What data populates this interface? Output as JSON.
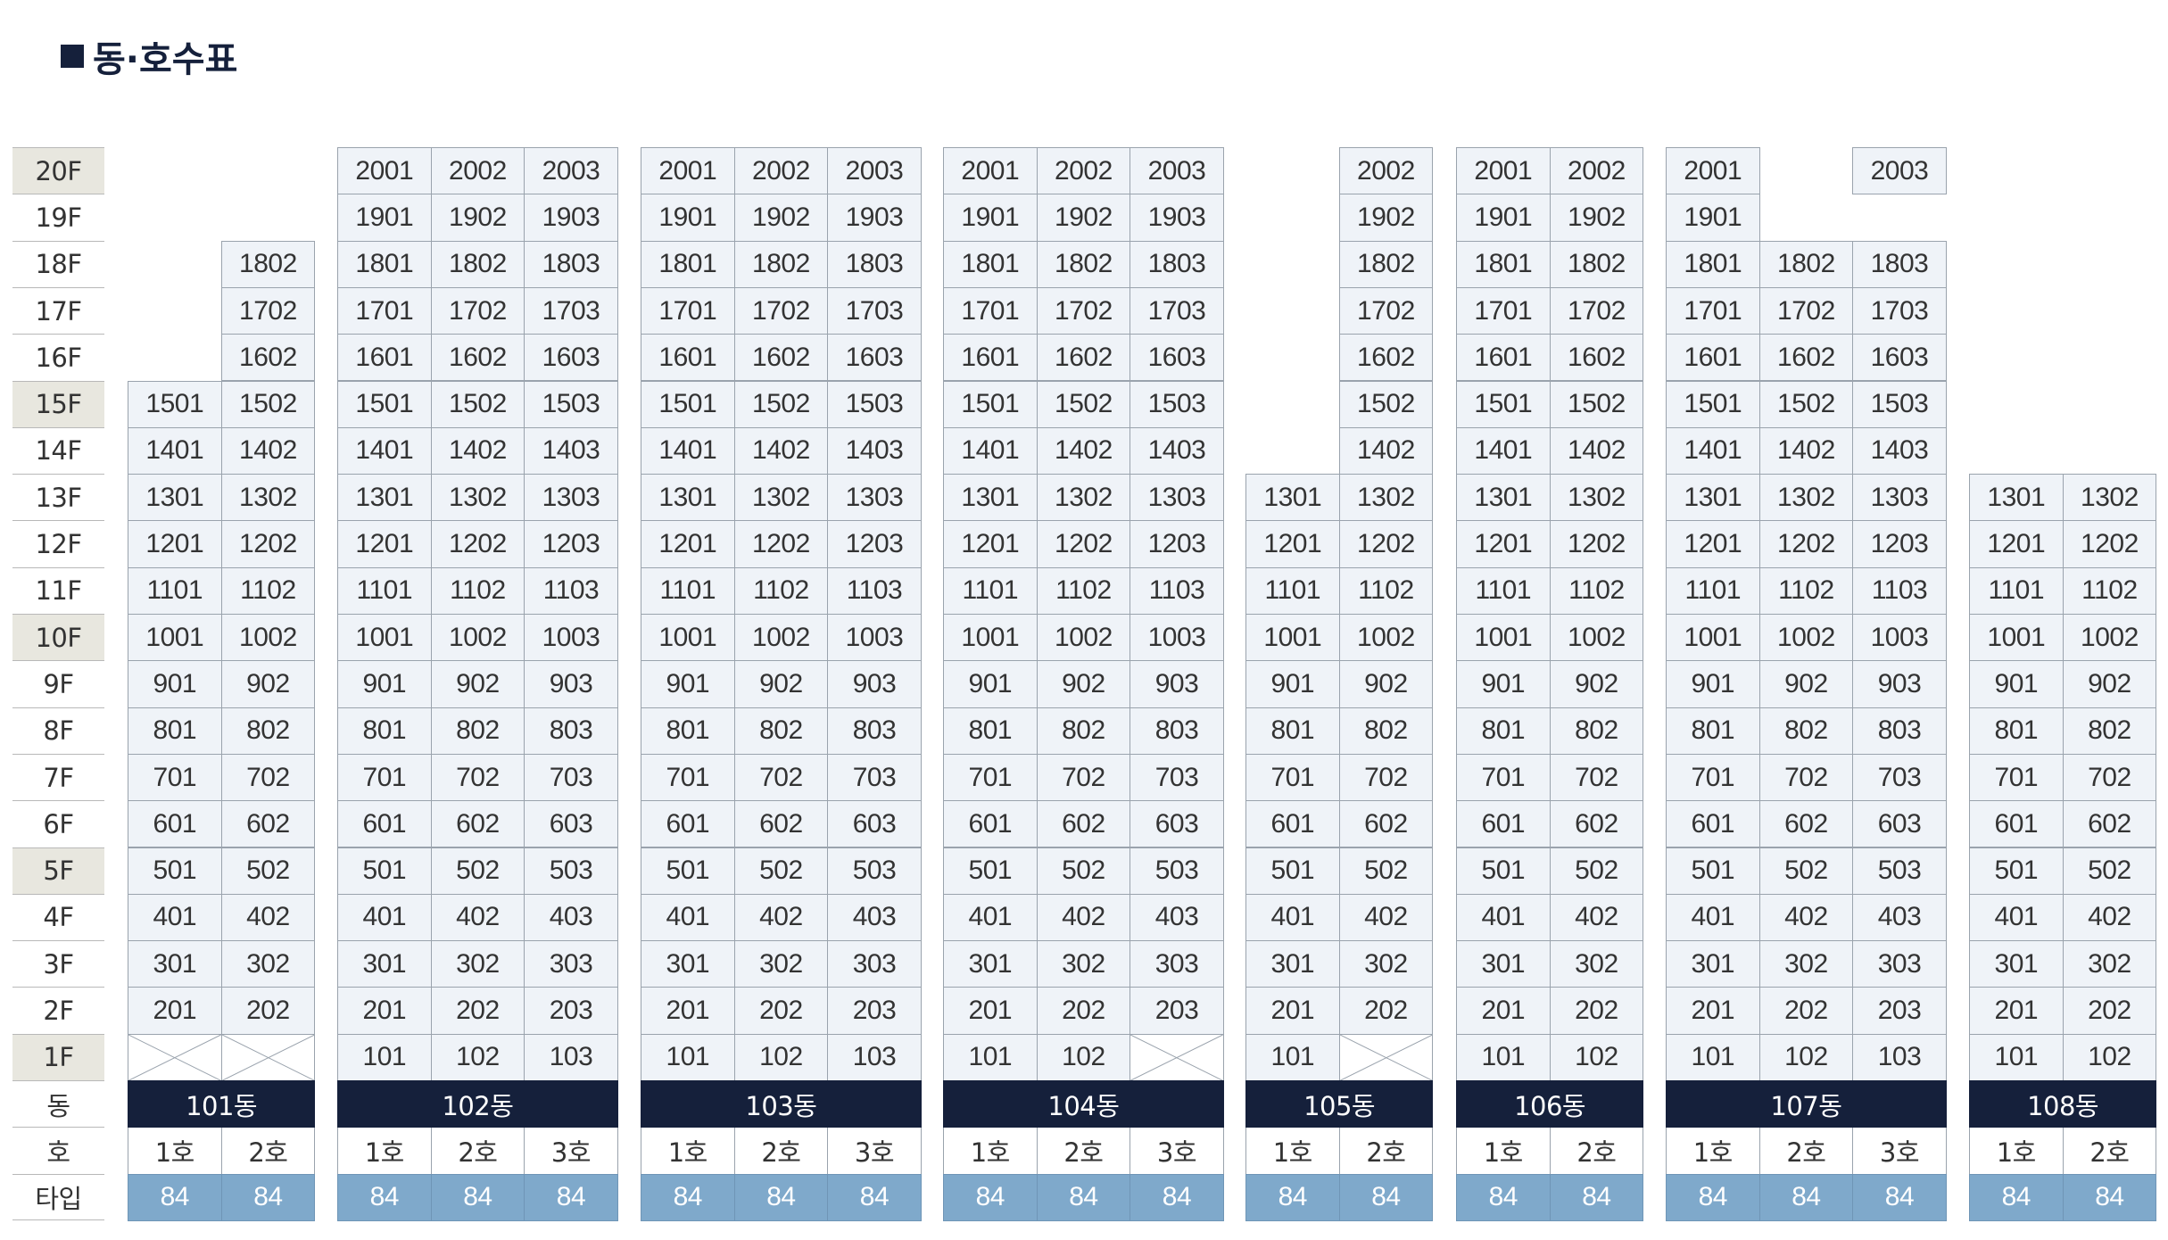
{
  "title": "동·호수표",
  "title_icon": "square-bullet-icon",
  "floor_labels": [
    "20F",
    "19F",
    "18F",
    "17F",
    "16F",
    "15F",
    "14F",
    "13F",
    "12F",
    "11F",
    "10F",
    "9F",
    "8F",
    "7F",
    "6F",
    "5F",
    "4F",
    "3F",
    "2F",
    "1F"
  ],
  "highlighted_floors": [
    "20F",
    "15F",
    "10F",
    "5F",
    "1F"
  ],
  "row_labels": {
    "dong": "동",
    "ho": "호",
    "type": "타입"
  },
  "colors": {
    "navy": "#15203b",
    "type_blue": "#7fa9cb",
    "unit_bg": "#eff3f8",
    "floor_highlight": "#e8e7df"
  },
  "buildings": [
    {
      "name": "101동",
      "lines": [
        {
          "ho": "1호",
          "type": "84",
          "top_floor": 15,
          "missing": [
            1
          ]
        },
        {
          "ho": "2호",
          "type": "84",
          "top_floor": 18,
          "missing": [
            1
          ]
        }
      ]
    },
    {
      "name": "102동",
      "lines": [
        {
          "ho": "1호",
          "type": "84",
          "top_floor": 20,
          "missing": []
        },
        {
          "ho": "2호",
          "type": "84",
          "top_floor": 20,
          "missing": []
        },
        {
          "ho": "3호",
          "type": "84",
          "top_floor": 20,
          "missing": []
        }
      ]
    },
    {
      "name": "103동",
      "lines": [
        {
          "ho": "1호",
          "type": "84",
          "top_floor": 20,
          "missing": []
        },
        {
          "ho": "2호",
          "type": "84",
          "top_floor": 20,
          "missing": []
        },
        {
          "ho": "3호",
          "type": "84",
          "top_floor": 20,
          "missing": []
        }
      ]
    },
    {
      "name": "104동",
      "lines": [
        {
          "ho": "1호",
          "type": "84",
          "top_floor": 20,
          "missing": []
        },
        {
          "ho": "2호",
          "type": "84",
          "top_floor": 20,
          "missing": []
        },
        {
          "ho": "3호",
          "type": "84",
          "top_floor": 20,
          "missing": [
            1
          ]
        }
      ]
    },
    {
      "name": "105동",
      "lines": [
        {
          "ho": "1호",
          "type": "84",
          "top_floor": 13,
          "missing": []
        },
        {
          "ho": "2호",
          "type": "84",
          "top_floor": 20,
          "missing": [
            1
          ]
        }
      ]
    },
    {
      "name": "106동",
      "lines": [
        {
          "ho": "1호",
          "type": "84",
          "top_floor": 20,
          "missing": []
        },
        {
          "ho": "2호",
          "type": "84",
          "top_floor": 20,
          "missing": []
        }
      ]
    },
    {
      "name": "107동",
      "lines": [
        {
          "ho": "1호",
          "type": "84",
          "top_floor": 20,
          "missing": []
        },
        {
          "ho": "2호",
          "type": "84",
          "top_floor": 18,
          "missing": []
        },
        {
          "ho": "3호",
          "type": "84",
          "top_floor": 20,
          "missing": [
            19
          ]
        }
      ]
    },
    {
      "name": "108동",
      "lines": [
        {
          "ho": "1호",
          "type": "84",
          "top_floor": 13,
          "missing": []
        },
        {
          "ho": "2호",
          "type": "84",
          "top_floor": 13,
          "missing": []
        }
      ]
    }
  ]
}
